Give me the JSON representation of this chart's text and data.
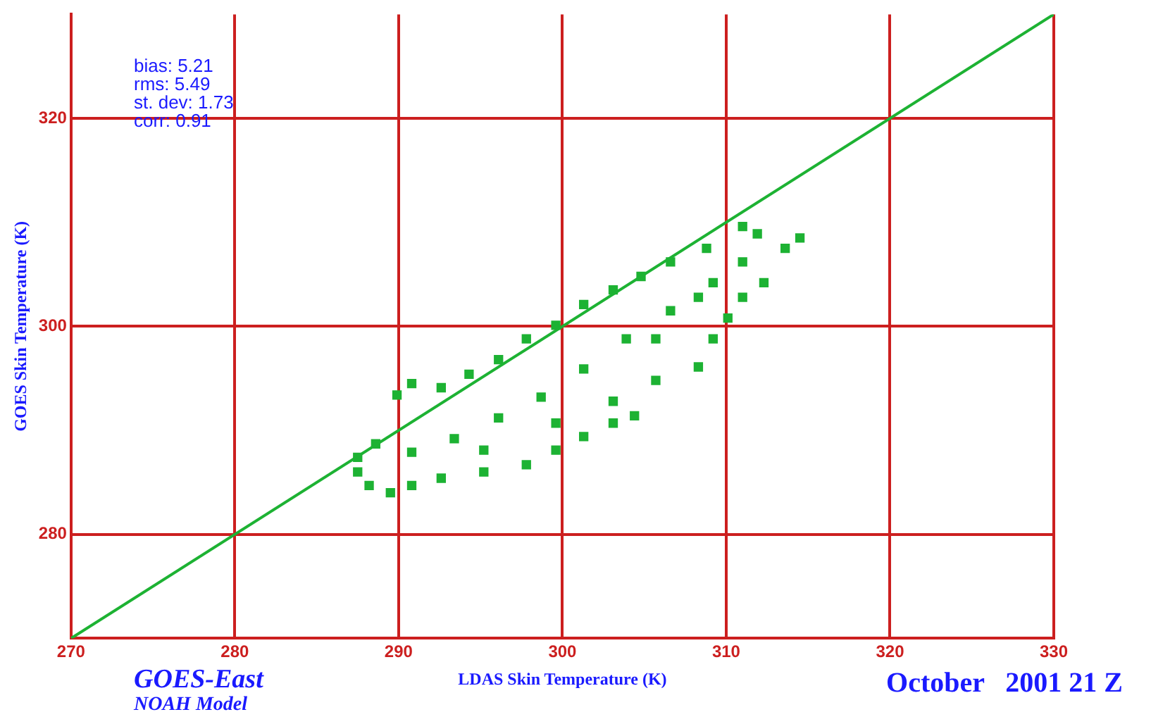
{
  "chart_data": {
    "type": "scatter",
    "xlabel": "LDAS Skin Temperature (K)",
    "ylabel": "GOES Skin Temperature (K)",
    "annotations": [
      "bias: 5.21",
      "rms: 5.49",
      "st. dev: 1.73",
      "corr: 0.91",
      "GOES-East",
      "NOAH Model",
      "October   2001 21 Z"
    ],
    "xlim": [
      270,
      330
    ],
    "xticks": [
      270,
      280,
      290,
      300,
      310,
      320,
      330
    ],
    "ylim": [
      270,
      330
    ],
    "yticks": [
      280,
      300,
      320
    ],
    "grid": true,
    "marker": "square",
    "series": [
      {
        "type": "line",
        "color": "#1db233",
        "marker": "none",
        "x": [
          270,
          330
        ],
        "values": [
          270,
          330
        ]
      },
      {
        "color": "#1db233",
        "x": [
          287.5,
          288.2,
          289.5,
          290.8,
          292.6,
          295.2,
          297.8,
          299.6,
          301.3,
          303.1,
          304.4,
          303.1,
          305.7,
          308.3,
          309.2,
          310.1,
          311.0,
          312.3,
          313.6,
          314.5,
          311.9,
          311.0,
          308.8,
          306.6,
          304.8,
          303.1,
          301.3,
          299.6,
          297.8,
          296.1,
          294.3,
          292.6,
          290.8,
          289.9,
          288.6,
          287.5,
          290.8,
          293.4,
          296.1,
          298.7,
          301.3,
          303.9,
          306.6,
          309.2,
          311.0,
          295.2,
          299.6,
          305.7,
          308.3
        ],
        "values": [
          286.0,
          284.7,
          284.0,
          284.7,
          285.4,
          286.0,
          286.7,
          288.1,
          289.4,
          290.7,
          291.4,
          292.8,
          294.8,
          296.1,
          298.8,
          300.8,
          302.8,
          304.2,
          307.5,
          308.5,
          308.9,
          309.6,
          307.5,
          306.2,
          304.8,
          303.5,
          302.1,
          300.1,
          298.8,
          296.8,
          295.4,
          294.1,
          294.5,
          293.4,
          288.7,
          287.4,
          287.9,
          289.2,
          291.2,
          293.2,
          295.9,
          298.8,
          301.5,
          304.2,
          306.2,
          288.1,
          290.7,
          298.8,
          302.8
        ]
      }
    ]
  }
}
